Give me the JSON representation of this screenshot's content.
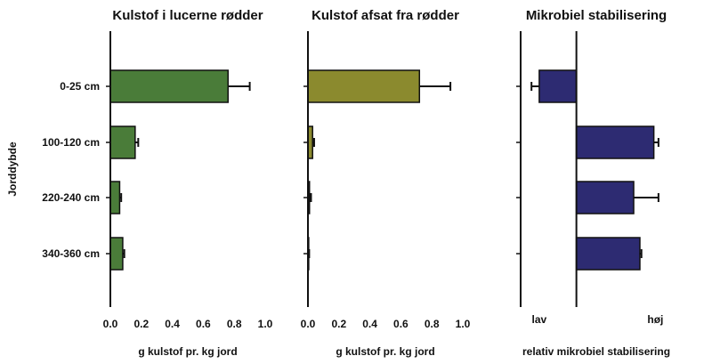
{
  "chart_data": {
    "type": "bar",
    "orientation": "horizontal",
    "ylabel": "Jorddybde",
    "categories": [
      "0-25 cm",
      "100-120 cm",
      "220-240 cm",
      "340-360 cm"
    ],
    "grid": false,
    "legend": "none",
    "panels": [
      {
        "title": "Kulstof i lucerne rødder",
        "xlabel": "g kulstof pr. kg jord",
        "xlim": [
          0,
          1.0
        ],
        "xticks": [
          0,
          0.2,
          0.4,
          0.6,
          0.8,
          1.0
        ],
        "xtick_labels": [
          "0.0",
          "0.2",
          "0.4",
          "0.6",
          "0.8",
          "1.0"
        ],
        "color": "#4a7c39",
        "values": [
          0.76,
          0.16,
          0.06,
          0.08
        ],
        "errors": [
          0.14,
          0.02,
          0.01,
          0.01
        ]
      },
      {
        "title": "Kulstof afsat fra rødder",
        "xlabel": "g kulstof pr. kg jord",
        "xlim": [
          0,
          1.0
        ],
        "xticks": [
          0,
          0.2,
          0.4,
          0.6,
          0.8,
          1.0
        ],
        "xtick_labels": [
          "0.0",
          "0.2",
          "0.4",
          "0.6",
          "0.8",
          "1.0"
        ],
        "color": "#8b8a2e",
        "values": [
          0.72,
          0.03,
          0.01,
          0.005
        ],
        "errors": [
          0.2,
          0.01,
          0.01,
          0.003
        ]
      },
      {
        "title": "Mikrobiel stabilisering",
        "xlabel": "relativ mikrobiel stabilisering",
        "xlim": [
          -0.36,
          0.64
        ],
        "xticks": [
          -0.24,
          0.51
        ],
        "xtick_labels": [
          "lav",
          "høj"
        ],
        "reference_line": 0,
        "color": "#2d2b72",
        "values": [
          -0.24,
          0.5,
          0.37,
          0.41
        ],
        "errors": [
          0.05,
          0.03,
          0.16,
          0.01
        ]
      }
    ]
  }
}
